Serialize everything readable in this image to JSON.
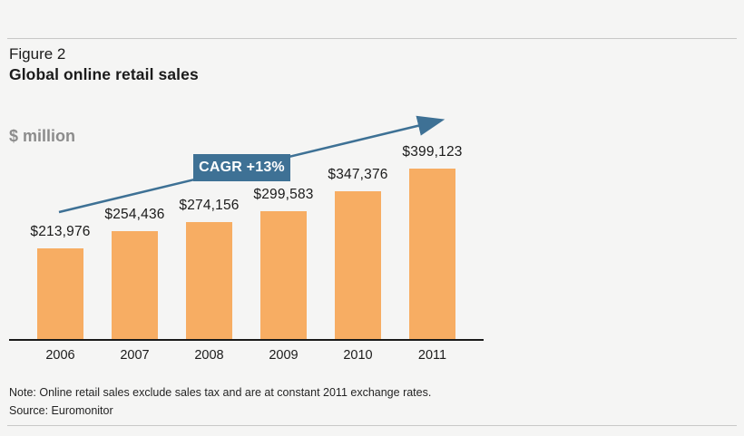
{
  "page": {
    "figure_label": "Figure 2",
    "title": "Global online retail sales",
    "unit_label": "$ million",
    "note": "Note: Online retail sales exclude sales tax and are at constant 2011 exchange rates.",
    "source": "Source: Euromonitor"
  },
  "annotation": {
    "cagr_label": "CAGR +13%"
  },
  "colors": {
    "background": "#f5f5f4",
    "bar": "#f7ad63",
    "accent_blue": "#3e7195",
    "axis": "#1a1a1a",
    "rule": "#c8c8c7",
    "muted_text": "#8c8c8c",
    "text": "#1b1b1b"
  },
  "chart_data": {
    "type": "bar",
    "title": "Global online retail sales",
    "xlabel": "",
    "ylabel": "$ million",
    "categories": [
      "2006",
      "2007",
      "2008",
      "2009",
      "2010",
      "2011"
    ],
    "values": [
      213976,
      254436,
      274156,
      299583,
      347376,
      399123
    ],
    "value_labels": [
      "$213,976",
      "$254,436",
      "$274,156",
      "$299,583",
      "$347,376",
      "$399,123"
    ],
    "annotation": "CAGR +13%",
    "ylim": [
      0,
      399123
    ],
    "grid": false,
    "legend_position": "none",
    "bar_color": "#f7ad63",
    "trend_arrow_color": "#3e7195"
  }
}
